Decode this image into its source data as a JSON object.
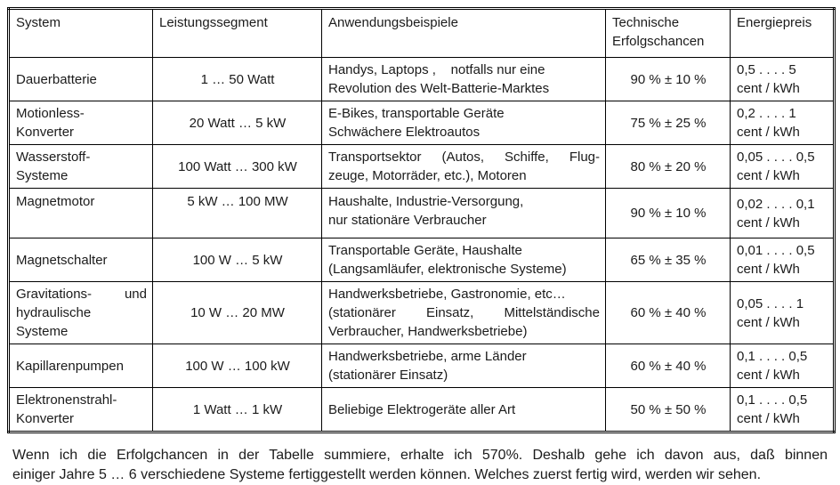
{
  "colors": {
    "background": "#ffffff",
    "text": "#1b1b1b",
    "border": "#000000"
  },
  "table": {
    "headers": [
      "System",
      "Leistungssegment",
      "Anwendungsbeispiele",
      "Technische Erfolgschancen",
      "Energiepreis"
    ],
    "rows": [
      {
        "system": [
          {
            "text": "Dauerbatterie"
          }
        ],
        "segment": "1 … 50 Watt",
        "examples": [
          {
            "text": "Handys, Laptops ,    notfalls nur eine"
          },
          {
            "text": "Revolution des Welt-Batterie-Marktes"
          }
        ],
        "chance": "90 % ± 10 %",
        "price": [
          {
            "text": "0,5 . . . . 5"
          },
          {
            "text": "cent / kWh"
          }
        ]
      },
      {
        "system": [
          {
            "text": "Motionless-"
          },
          {
            "text": "Konverter"
          }
        ],
        "segment": "20 Watt … 5 kW",
        "examples": [
          {
            "text": "E-Bikes, transportable Geräte"
          },
          {
            "text": "Schwächere Elektroautos"
          }
        ],
        "chance": "75 % ± 25 %",
        "price": [
          {
            "text": "0,2 . . . . 1"
          },
          {
            "text": "cent / kWh"
          }
        ]
      },
      {
        "system": [
          {
            "text": "Wasserstoff-"
          },
          {
            "text": "Systeme"
          }
        ],
        "segment": "100 Watt … 300 kW",
        "examples": [
          {
            "text": "Transportsektor (Autos, Schiffe, Flug-",
            "stretch": true
          },
          {
            "text": "zeuge, Motorräder, etc.), Motoren"
          }
        ],
        "chance": "80 % ± 20 %",
        "price": [
          {
            "text": "0,05 . . . . 0,5"
          },
          {
            "text": "cent / kWh"
          }
        ]
      },
      {
        "system": [
          {
            "text": "Magnetmotor"
          }
        ],
        "segment": "5 kW … 100 MW",
        "examples": [
          {
            "text": "Haushalte, Industrie-Versorgung,"
          },
          {
            "text": "nur stationäre Verbraucher"
          }
        ],
        "chance": "90 % ± 10 %",
        "price": [
          {
            "text": "0,02 . . . . 0,1"
          },
          {
            "text": "cent / kWh"
          }
        ]
      },
      {
        "system": [
          {
            "text": "Magnetschalter"
          }
        ],
        "segment": "100 W … 5 kW",
        "examples": [
          {
            "text": "Transportable Geräte, Haushalte"
          },
          {
            "text": "(Langsamläufer, elektronische Systeme)"
          }
        ],
        "chance": "65 % ± 35 %",
        "price": [
          {
            "text": "0,01 . . . . 0,5"
          },
          {
            "text": "cent / kWh"
          }
        ]
      },
      {
        "system": [
          {
            "text": "Gravitations- und",
            "stretch": true
          },
          {
            "text": "hydraulische"
          },
          {
            "text": "Systeme"
          }
        ],
        "segment": "10 W … 20 MW",
        "examples": [
          {
            "text": "Handwerksbetriebe, Gastronomie, etc…"
          },
          {
            "text": "(stationärer Einsatz, Mittelständische",
            "stretch": true
          },
          {
            "text": "Verbraucher, Handwerksbetriebe)"
          }
        ],
        "chance": "60 % ± 40 %",
        "price": [
          {
            "text": "0,05 . . . . 1"
          },
          {
            "text": "cent / kWh"
          }
        ]
      },
      {
        "system": [
          {
            "text": "Kapillarenpumpen"
          }
        ],
        "segment": "100 W … 100 kW",
        "examples": [
          {
            "text": "Handwerksbetriebe, arme Länder"
          },
          {
            "text": "(stationärer Einsatz)"
          }
        ],
        "chance": "60 % ± 40 %",
        "price": [
          {
            "text": "0,1 . . . . 0,5"
          },
          {
            "text": "cent / kWh"
          }
        ]
      },
      {
        "system": [
          {
            "text": "Elektronenstrahl-"
          },
          {
            "text": "Konverter"
          }
        ],
        "segment": "1 Watt … 1 kW",
        "examples": [
          {
            "text": "Beliebige Elektrogeräte aller Art"
          }
        ],
        "chance": "50 % ± 50 %",
        "price": [
          {
            "text": "0,1 . . . . 0,5"
          },
          {
            "text": "cent / kWh"
          }
        ]
      }
    ]
  },
  "footer": {
    "lines": [
      {
        "text": "Wenn ich die Erfolgchancen in der Tabelle summiere, erhalte ich 570%. Deshalb gehe ich davon aus, daß binnen",
        "stretch": true
      },
      {
        "text": "einiger Jahre 5 … 6 verschiedene Systeme fertiggestellt werden können. Welches zuerst fertig wird, werden wir sehen."
      }
    ]
  }
}
